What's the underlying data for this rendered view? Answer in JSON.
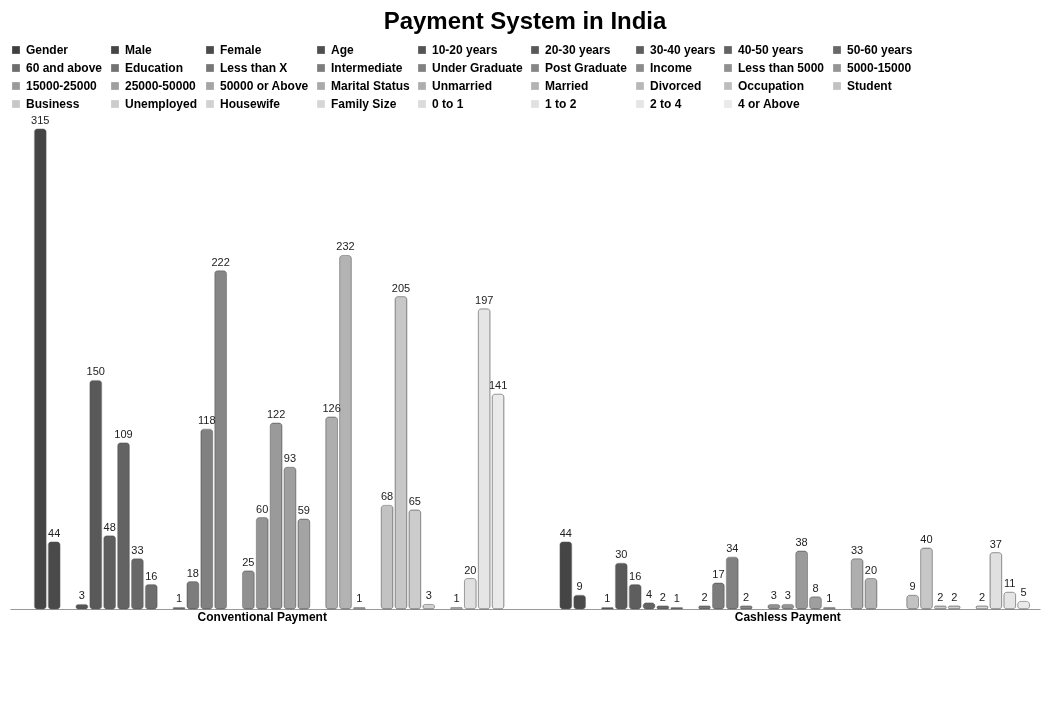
{
  "chart_data": {
    "type": "bar",
    "title": "Payment System in India",
    "categories": [
      "Conventional Payment",
      "Cashless Payment"
    ],
    "data_labels": true,
    "legend": "top",
    "grid": false,
    "tick_labels": "x",
    "series": [
      {
        "name": "Gender",
        "color": "#404040",
        "values": [
          null,
          null
        ]
      },
      {
        "name": "Male",
        "color": "#454545",
        "values": [
          315,
          44
        ]
      },
      {
        "name": "Female",
        "color": "#4a4a4a",
        "values": [
          44,
          9
        ]
      },
      {
        "name": "Age",
        "color": "#4f4f4f",
        "values": [
          null,
          null
        ]
      },
      {
        "name": "10-20 years",
        "color": "#545454",
        "values": [
          3,
          1
        ]
      },
      {
        "name": "20-30 years",
        "color": "#595959",
        "values": [
          150,
          30
        ]
      },
      {
        "name": "30-40 years",
        "color": "#5e5e5e",
        "values": [
          48,
          16
        ]
      },
      {
        "name": "40-50 years",
        "color": "#636363",
        "values": [
          109,
          4
        ]
      },
      {
        "name": "50-60 years",
        "color": "#686868",
        "values": [
          33,
          2
        ]
      },
      {
        "name": "60 and above",
        "color": "#6d6d6d",
        "values": [
          16,
          1
        ]
      },
      {
        "name": "Education",
        "color": "#727272",
        "values": [
          null,
          null
        ]
      },
      {
        "name": "Less than X",
        "color": "#777777",
        "values": [
          1,
          2
        ]
      },
      {
        "name": "Intermediate",
        "color": "#7c7c7c",
        "values": [
          18,
          17
        ]
      },
      {
        "name": "Under Graduate",
        "color": "#818181",
        "values": [
          118,
          34
        ]
      },
      {
        "name": "Post Graduate",
        "color": "#868686",
        "values": [
          222,
          2
        ]
      },
      {
        "name": "Income",
        "color": "#8b8b8b",
        "values": [
          null,
          null
        ]
      },
      {
        "name": "Less than 5000",
        "color": "#909090",
        "values": [
          25,
          3
        ]
      },
      {
        "name": "5000-15000",
        "color": "#959595",
        "values": [
          60,
          3
        ]
      },
      {
        "name": "15000-25000",
        "color": "#9a9a9a",
        "values": [
          122,
          38
        ]
      },
      {
        "name": "25000-50000",
        "color": "#9f9f9f",
        "values": [
          93,
          8
        ]
      },
      {
        "name": "50000 or Above",
        "color": "#a4a4a4",
        "values": [
          59,
          1
        ]
      },
      {
        "name": "Marital Status",
        "color": "#a9a9a9",
        "values": [
          null,
          null
        ]
      },
      {
        "name": "Unmarried",
        "color": "#aeaeae",
        "values": [
          126,
          33
        ]
      },
      {
        "name": "Married",
        "color": "#b3b3b3",
        "values": [
          232,
          20
        ]
      },
      {
        "name": "Divorced",
        "color": "#b8b8b8",
        "values": [
          1,
          null
        ]
      },
      {
        "name": "Occupation",
        "color": "#bdbdbd",
        "values": [
          null,
          null
        ]
      },
      {
        "name": "Student",
        "color": "#c2c2c2",
        "values": [
          68,
          9
        ]
      },
      {
        "name": "Business",
        "color": "#c7c7c7",
        "values": [
          205,
          40
        ]
      },
      {
        "name": "Unemployed",
        "color": "#cccccc",
        "values": [
          65,
          2
        ]
      },
      {
        "name": "Housewife",
        "color": "#d1d1d1",
        "values": [
          3,
          2
        ]
      },
      {
        "name": "Family Size",
        "color": "#d6d6d6",
        "values": [
          null,
          null
        ]
      },
      {
        "name": "0 to 1",
        "color": "#dbdbdb",
        "values": [
          1,
          2
        ]
      },
      {
        "name": "1 to 2",
        "color": "#e0e0e0",
        "values": [
          20,
          37
        ]
      },
      {
        "name": "2 to 4",
        "color": "#e5e5e5",
        "values": [
          197,
          11
        ]
      },
      {
        "name": "4 or Above",
        "color": "#eaeaea",
        "values": [
          141,
          5
        ]
      }
    ]
  }
}
